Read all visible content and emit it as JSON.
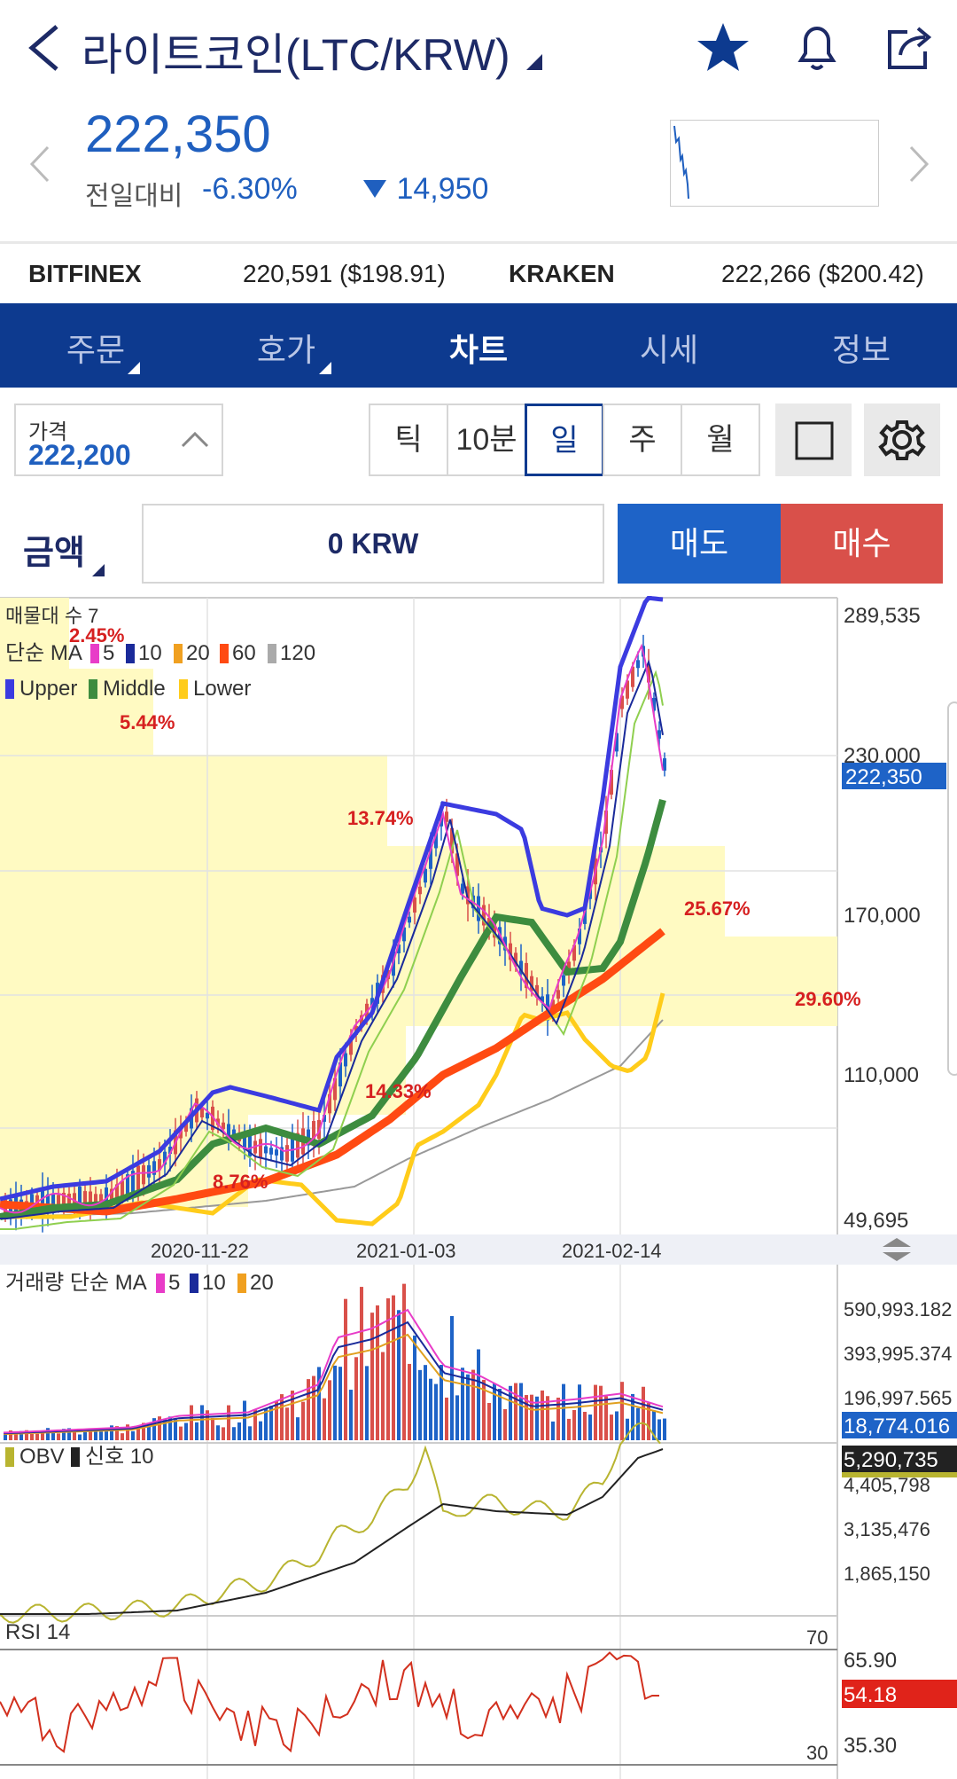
{
  "header": {
    "title": "라이트코인(LTC/KRW)",
    "price": "222,350",
    "change_label": "전일대비",
    "change_pct": "-6.30%",
    "change_val": "14,950"
  },
  "exchanges": [
    {
      "name": "BITFINEX",
      "value": "220,591 ($198.91)"
    },
    {
      "name": "KRAKEN",
      "value": "222,266 ($200.42)"
    }
  ],
  "tabs": [
    "주문",
    "호가",
    "차트",
    "시세",
    "정보"
  ],
  "order": {
    "price_label": "가격",
    "price_value": "222,200",
    "periods": [
      "틱",
      "10분",
      "일",
      "주",
      "월"
    ],
    "amount_label": "금액",
    "amount_value": "0 KRW",
    "sell": "매도",
    "buy": "매수"
  },
  "chart": {
    "legend1": "매물대 수 7",
    "legend2_prefix": "단순 MA",
    "ma_periods": [
      "5",
      "10",
      "20",
      "60",
      "120"
    ],
    "bb_names": [
      "Upper",
      "Middle",
      "Lower"
    ],
    "pct_labels": [
      "2.45%",
      "5.44%",
      "13.74%",
      "25.67%",
      "29.60%",
      "14.33%",
      "8.76%"
    ],
    "y_ticks": [
      "289,535",
      "230,000",
      "170,000",
      "110,000",
      "49,695"
    ],
    "current_price": "222,350",
    "x_dates": [
      "2020-11-22",
      "2021-01-03",
      "2021-02-14"
    ],
    "volume_legend": "거래량 단순 MA",
    "volume_ma": [
      "5",
      "10",
      "20"
    ],
    "volume_ticks": [
      "590,993.182",
      "393,995.374",
      "196,997.565"
    ],
    "volume_current": "18,774.016",
    "obv_legend_a": "OBV",
    "obv_legend_b": "신호 10",
    "obv_ticks": [
      "4,405,798",
      "3,135,476",
      "1,865,150"
    ],
    "obv_current": "5,290,735",
    "rsi_legend": "RSI 14",
    "rsi_ticks": [
      "65.90",
      "35.30"
    ],
    "rsi_current": "54.18",
    "rsi_levels": [
      "70",
      "30"
    ]
  },
  "colors": {
    "nav": "#0d3a8f",
    "price_blue": "#1f5fbf",
    "candle_up": "#d9504a",
    "candle_down": "#1e63c7",
    "ma60": "#ff4a12",
    "bb_upper": "#3b3be0",
    "bb_middle": "#3d8c3f",
    "bb_lower": "#ffcc1a"
  },
  "icons": [
    "back-arrow-icon",
    "dropdown-triangle-icon",
    "star-icon",
    "bell-icon",
    "share-icon",
    "chevron-left-icon",
    "chevron-right-icon",
    "square-icon",
    "gear-icon",
    "chevron-up-icon"
  ]
}
